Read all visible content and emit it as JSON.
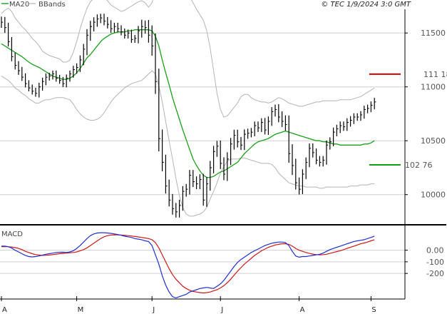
{
  "header": {
    "legend_ma": "MA20",
    "legend_bb": "BBands",
    "credit": "© TEC 1/9/2024 3:0 GMT"
  },
  "macd_label": "MACD",
  "colors": {
    "ma": "#1aa01a",
    "bands": "#b4b4b4",
    "bars": "#000000",
    "resistance": "#d40000",
    "support": "#12a012",
    "macd_line": "#2030d0",
    "signal_line": "#d01818",
    "grid": "#cfcfcf",
    "frame": "#000000"
  },
  "levels": {
    "resistance": {
      "label": "111 18",
      "value": 11118
    },
    "support": {
      "label": "102 76",
      "value": 10276
    }
  },
  "chart_data": [
    {
      "type": "ohlc",
      "yticks": [
        "11500",
        "11000",
        "10500",
        "10000"
      ],
      "y_tick_values": [
        11500,
        11000,
        10500,
        10000
      ],
      "ylim": [
        9720,
        11720
      ],
      "xlabels": [
        "A",
        "M",
        "J",
        "J",
        "A",
        "S"
      ],
      "xlabel_index": [
        0,
        22,
        44,
        64,
        87,
        108
      ],
      "n": 110,
      "close": [
        11600,
        11550,
        11420,
        11280,
        11200,
        11150,
        11090,
        11030,
        10990,
        10960,
        10940,
        11000,
        11050,
        11090,
        11100,
        11120,
        11080,
        11060,
        11030,
        11080,
        11120,
        11160,
        11180,
        11250,
        11350,
        11480,
        11560,
        11600,
        11630,
        11640,
        11610,
        11580,
        11540,
        11560,
        11540,
        11510,
        11480,
        11500,
        11440,
        11450,
        11520,
        11560,
        11550,
        11480,
        11380,
        11050,
        10520,
        10300,
        10080,
        9950,
        9870,
        9840,
        9900,
        10030,
        10050,
        10180,
        10120,
        10100,
        10140,
        9950,
        10100,
        10250,
        10400,
        10450,
        10290,
        10190,
        10330,
        10470,
        10550,
        10490,
        10460,
        10560,
        10570,
        10580,
        10640,
        10620,
        10670,
        10600,
        10680,
        10770,
        10790,
        10720,
        10680,
        10650,
        10380,
        10270,
        10110,
        10050,
        10190,
        10300,
        10430,
        10390,
        10320,
        10300,
        10320,
        10460,
        10490,
        10580,
        10610,
        10640,
        10630,
        10670,
        10690,
        10720,
        10720,
        10740,
        10790,
        10800,
        10830,
        10860
      ],
      "range": [
        150,
        140,
        130,
        120,
        110,
        110,
        100,
        100,
        90,
        90,
        90,
        110,
        100,
        100,
        90,
        90,
        90,
        90,
        90,
        100,
        90,
        100,
        110,
        120,
        140,
        160,
        150,
        130,
        120,
        110,
        110,
        110,
        110,
        100,
        100,
        90,
        90,
        90,
        90,
        90,
        130,
        180,
        160,
        200,
        260,
        330,
        340,
        240,
        200,
        170,
        160,
        150,
        150,
        140,
        140,
        140,
        140,
        140,
        140,
        150,
        180,
        180,
        150,
        140,
        150,
        160,
        180,
        160,
        150,
        150,
        130,
        130,
        120,
        110,
        110,
        110,
        110,
        120,
        130,
        120,
        130,
        140,
        150,
        160,
        240,
        250,
        180,
        140,
        130,
        130,
        130,
        130,
        110,
        110,
        110,
        120,
        120,
        120,
        110,
        110,
        110,
        110,
        110,
        100,
        100,
        100,
        100,
        100,
        100,
        110
      ],
      "ma20": [
        11400,
        11380,
        11360,
        11340,
        11320,
        11300,
        11280,
        11255,
        11230,
        11210,
        11195,
        11180,
        11160,
        11140,
        11120,
        11100,
        11090,
        11080,
        11070,
        11070,
        11080,
        11100,
        11130,
        11170,
        11220,
        11270,
        11300,
        11340,
        11380,
        11420,
        11450,
        11470,
        11490,
        11500,
        11510,
        11510,
        11510,
        11520,
        11520,
        11530,
        11530,
        11530,
        11530,
        11530,
        11520,
        11470,
        11380,
        11250,
        11130,
        11020,
        10900,
        10800,
        10700,
        10600,
        10510,
        10420,
        10330,
        10270,
        10220,
        10180,
        10160,
        10160,
        10170,
        10190,
        10210,
        10220,
        10240,
        10260,
        10280,
        10300,
        10340,
        10380,
        10410,
        10440,
        10470,
        10490,
        10500,
        10510,
        10520,
        10540,
        10560,
        10570,
        10580,
        10590,
        10580,
        10570,
        10560,
        10550,
        10540,
        10530,
        10520,
        10510,
        10500,
        10500,
        10490,
        10490,
        10480,
        10470,
        10470,
        10460,
        10460,
        10460,
        10460,
        10460,
        10460,
        10460,
        10470,
        10470,
        10480,
        10500
      ],
      "upper": [
        11680,
        11710,
        11730,
        11700,
        11640,
        11600,
        11560,
        11530,
        11490,
        11450,
        11420,
        11380,
        11330,
        11310,
        11290,
        11280,
        11270,
        11260,
        11230,
        11230,
        11250,
        11320,
        11420,
        11540,
        11640,
        11730,
        11790,
        11820,
        11830,
        11840,
        11830,
        11800,
        11760,
        11740,
        11720,
        11700,
        11710,
        11730,
        11750,
        11770,
        11790,
        11800,
        11780,
        11740,
        11780,
        11900,
        11980,
        12040,
        12060,
        12070,
        12060,
        12040,
        12000,
        11960,
        11900,
        11840,
        11780,
        11720,
        11670,
        11620,
        11520,
        11360,
        11150,
        10940,
        10790,
        10720,
        10730,
        10770,
        10810,
        10850,
        10910,
        10930,
        10930,
        10900,
        10880,
        10870,
        10860,
        10860,
        10850,
        10860,
        10880,
        10900,
        10890,
        10870,
        10850,
        10840,
        10830,
        10820,
        10820,
        10830,
        10840,
        10850,
        10860,
        10860,
        10870,
        10870,
        10870,
        10870,
        10870,
        10880,
        10880,
        10880,
        10880,
        10890,
        10900,
        10910,
        10930,
        10950,
        10970,
        10990
      ],
      "lower": [
        11100,
        11080,
        11060,
        11030,
        10990,
        10970,
        10940,
        10920,
        10890,
        10870,
        10850,
        10850,
        10870,
        10880,
        10880,
        10890,
        10900,
        10900,
        10900,
        10890,
        10880,
        10840,
        10790,
        10750,
        10720,
        10700,
        10690,
        10690,
        10700,
        10720,
        10760,
        10810,
        10860,
        10900,
        10930,
        10960,
        10990,
        11010,
        11030,
        11040,
        11050,
        11060,
        11090,
        11120,
        11150,
        11120,
        11010,
        10860,
        10680,
        10500,
        10330,
        10150,
        9990,
        9880,
        9820,
        9800,
        9800,
        9810,
        9820,
        9840,
        9880,
        9960,
        10030,
        10110,
        10200,
        10260,
        10310,
        10330,
        10330,
        10330,
        10340,
        10340,
        10330,
        10320,
        10310,
        10300,
        10290,
        10290,
        10290,
        10280,
        10250,
        10200,
        10170,
        10140,
        10110,
        10100,
        10090,
        10080,
        10080,
        10070,
        10070,
        10070,
        10070,
        10060,
        10060,
        10070,
        10070,
        10070,
        10070,
        10070,
        10070,
        10070,
        10080,
        10080,
        10080,
        10090,
        10090,
        10090,
        10100,
        10100
      ]
    },
    {
      "type": "line",
      "yticks": [
        "0.00",
        "-100",
        "-200"
      ],
      "y_tick_values": [
        0,
        -100,
        -200
      ],
      "ylim": [
        -420,
        200
      ],
      "series": [
        {
          "values": [
            35,
            35,
            30,
            18,
            0,
            -15,
            -30,
            -45,
            -55,
            -58,
            -55,
            -50,
            -42,
            -35,
            -30,
            -25,
            -20,
            -18,
            -17,
            -20,
            -15,
            -5,
            15,
            40,
            70,
            100,
            125,
            140,
            148,
            150,
            150,
            148,
            145,
            140,
            135,
            128,
            120,
            115,
            110,
            100,
            95,
            90,
            80,
            75,
            40,
            -40,
            -120,
            -220,
            -300,
            -360,
            -400,
            -410,
            -400,
            -390,
            -380,
            -360,
            -350,
            -340,
            -330,
            -325,
            -320,
            -325,
            -330,
            -310,
            -290,
            -260,
            -220,
            -180,
            -140,
            -105,
            -80,
            -60,
            -40,
            -20,
            -5,
            10,
            25,
            40,
            50,
            60,
            65,
            70,
            70,
            65,
            40,
            -10,
            -50,
            -60,
            -55,
            -55,
            -50,
            -45,
            -40,
            -35,
            -25,
            -10,
            5,
            15,
            25,
            35,
            45,
            55,
            65,
            75,
            80,
            85,
            90,
            100,
            110,
            120
          ]
        },
        {
          "values": [
            30,
            30,
            30,
            27,
            22,
            15,
            5,
            -10,
            -20,
            -30,
            -38,
            -42,
            -45,
            -44,
            -42,
            -38,
            -34,
            -30,
            -28,
            -25,
            -22,
            -20,
            -15,
            -5,
            5,
            20,
            40,
            60,
            80,
            100,
            115,
            125,
            130,
            132,
            132,
            130,
            128,
            125,
            122,
            118,
            114,
            110,
            105,
            100,
            90,
            65,
            20,
            -40,
            -100,
            -160,
            -210,
            -250,
            -280,
            -310,
            -330,
            -345,
            -355,
            -360,
            -365,
            -368,
            -365,
            -360,
            -350,
            -340,
            -325,
            -305,
            -280,
            -250,
            -215,
            -180,
            -150,
            -120,
            -95,
            -70,
            -45,
            -25,
            -5,
            10,
            25,
            35,
            45,
            50,
            55,
            55,
            50,
            35,
            15,
            0,
            -10,
            -20,
            -28,
            -34,
            -38,
            -40,
            -38,
            -35,
            -28,
            -20,
            -12,
            -5,
            5,
            15,
            25,
            35,
            45,
            55,
            62,
            70,
            80,
            90
          ]
        }
      ]
    }
  ]
}
